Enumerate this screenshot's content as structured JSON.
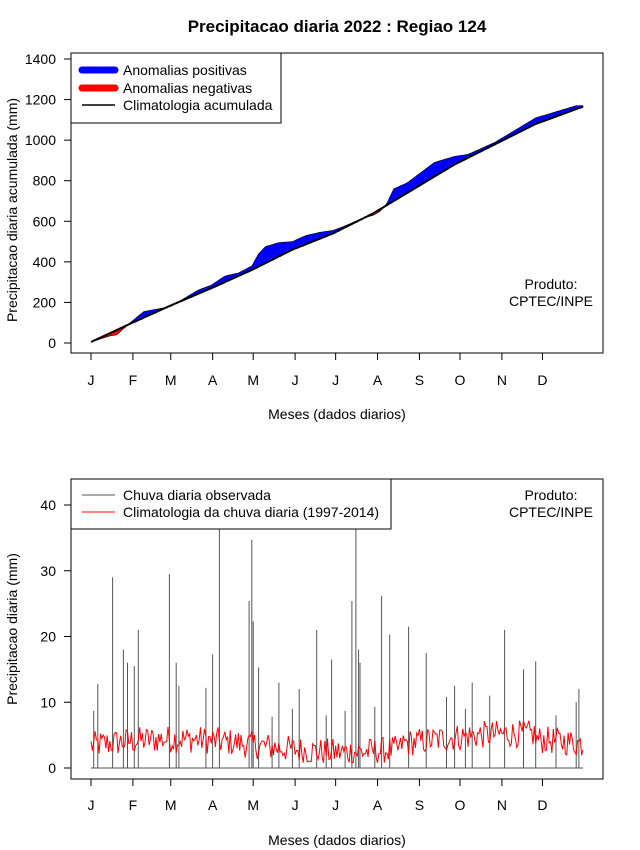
{
  "chart_data": [
    {
      "type": "area",
      "title": "Precipitacao diaria 2022 : Regiao 124",
      "xlabel": "Meses (dados diarios)",
      "ylabel": "Precipitacao diaria acumulada (mm)",
      "ylim": [
        0,
        1400
      ],
      "yticks": [
        "0",
        "200",
        "400",
        "600",
        "800",
        "1000",
        "1200",
        "1400"
      ],
      "months": [
        "J",
        "F",
        "M",
        "A",
        "M",
        "J",
        "J",
        "A",
        "S",
        "O",
        "N",
        "D"
      ],
      "legend": [
        "Anomalias positivas",
        "Anomalias negativas",
        "Climatologia acumulada"
      ],
      "colors": {
        "positive": "#0000ff",
        "negative": "#ff0000",
        "climatology": "#000000"
      },
      "product_label": [
        "Produto:",
        "CPTEC/INPE"
      ],
      "climatology_points": [
        [
          1,
          5
        ],
        [
          30,
          95
        ],
        [
          60,
          185
        ],
        [
          90,
          270
        ],
        [
          120,
          360
        ],
        [
          150,
          460
        ],
        [
          180,
          540
        ],
        [
          210,
          640
        ],
        [
          240,
          760
        ],
        [
          270,
          880
        ],
        [
          300,
          980
        ],
        [
          330,
          1080
        ],
        [
          365,
          1165
        ]
      ],
      "observed_points": [
        [
          1,
          5
        ],
        [
          15,
          35
        ],
        [
          20,
          40
        ],
        [
          30,
          100
        ],
        [
          40,
          155
        ],
        [
          48,
          165
        ],
        [
          60,
          180
        ],
        [
          70,
          220
        ],
        [
          80,
          260
        ],
        [
          90,
          285
        ],
        [
          100,
          330
        ],
        [
          110,
          345
        ],
        [
          120,
          380
        ],
        [
          125,
          440
        ],
        [
          130,
          475
        ],
        [
          140,
          495
        ],
        [
          150,
          500
        ],
        [
          160,
          530
        ],
        [
          170,
          545
        ],
        [
          180,
          555
        ],
        [
          190,
          580
        ],
        [
          200,
          610
        ],
        [
          210,
          630
        ],
        [
          215,
          650
        ],
        [
          220,
          690
        ],
        [
          225,
          760
        ],
        [
          235,
          790
        ],
        [
          245,
          840
        ],
        [
          255,
          890
        ],
        [
          265,
          910
        ],
        [
          270,
          920
        ],
        [
          280,
          930
        ],
        [
          290,
          960
        ],
        [
          300,
          990
        ],
        [
          310,
          1030
        ],
        [
          320,
          1070
        ],
        [
          330,
          1110
        ],
        [
          340,
          1130
        ],
        [
          350,
          1150
        ],
        [
          360,
          1170
        ],
        [
          365,
          1170
        ]
      ]
    },
    {
      "type": "line",
      "xlabel": "Meses (dados diarios)",
      "ylabel": "Precipitacao diaria (mm)",
      "ylim": [
        0,
        40
      ],
      "yticks": [
        "0",
        "10",
        "20",
        "30",
        "40"
      ],
      "months": [
        "J",
        "F",
        "M",
        "A",
        "M",
        "J",
        "J",
        "A",
        "S",
        "O",
        "N",
        "D"
      ],
      "legend": [
        "Chuva diaria observada",
        "Climatologia da chuva diaria (1997-2014)"
      ],
      "colors": {
        "observed": "#555555",
        "climatology": "#ff0000"
      },
      "product_label": [
        "Produto:",
        "CPTEC/INPE"
      ],
      "observed_peaks": [
        [
          3,
          8.7
        ],
        [
          6,
          12.8
        ],
        [
          17,
          29
        ],
        [
          25,
          18
        ],
        [
          28,
          16
        ],
        [
          33,
          15.5
        ],
        [
          36,
          21
        ],
        [
          59,
          29.5
        ],
        [
          64,
          16
        ],
        [
          66,
          12.5
        ],
        [
          86,
          12.2
        ],
        [
          91,
          17.3
        ],
        [
          96,
          45
        ],
        [
          118,
          25.4
        ],
        [
          120,
          34.7
        ],
        [
          121,
          22.3
        ],
        [
          125,
          15.3
        ],
        [
          135,
          7.8
        ],
        [
          140,
          13
        ],
        [
          150,
          9
        ],
        [
          155,
          12
        ],
        [
          168,
          21
        ],
        [
          175,
          8
        ],
        [
          179,
          16.5
        ],
        [
          189,
          8.7
        ],
        [
          194,
          25.4
        ],
        [
          197,
          43
        ],
        [
          199,
          18
        ],
        [
          200,
          16
        ],
        [
          211,
          9.3
        ],
        [
          216,
          26.2
        ],
        [
          222,
          20.3
        ],
        [
          236,
          21.5
        ],
        [
          249,
          17.5
        ],
        [
          264,
          10.8
        ],
        [
          270,
          12.5
        ],
        [
          278,
          9
        ],
        [
          283,
          13
        ],
        [
          296,
          11
        ],
        [
          307,
          21
        ],
        [
          321,
          15
        ],
        [
          330,
          16.2
        ],
        [
          345,
          8
        ],
        [
          360,
          10
        ],
        [
          362,
          12
        ]
      ]
    }
  ]
}
